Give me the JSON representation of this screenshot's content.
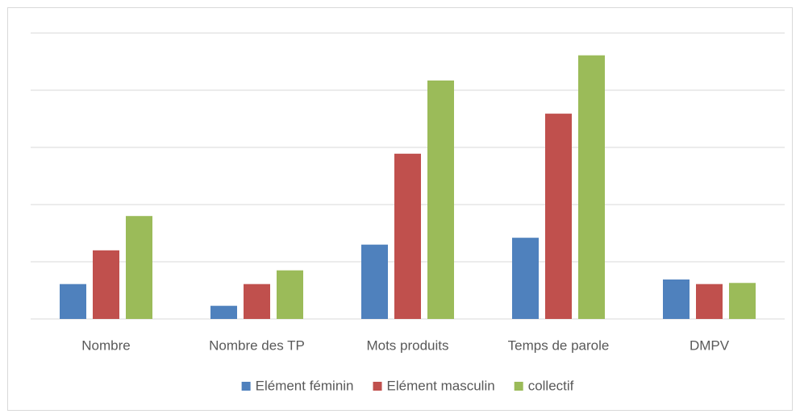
{
  "chart_data": {
    "type": "bar",
    "categories": [
      "Nombre",
      "Nombre des TP",
      "Mots produits",
      "Temps de parole",
      "DMPV"
    ],
    "series": [
      {
        "name": "Elément féminin",
        "color": "#4f81bd",
        "values": [
          0.61,
          0.23,
          1.3,
          1.42,
          0.69
        ]
      },
      {
        "name": "Elément masculin",
        "color": "#c0504d",
        "values": [
          1.2,
          0.61,
          2.89,
          3.59,
          0.61
        ]
      },
      {
        "name": "collectif",
        "color": "#9bbb59",
        "values": [
          1.8,
          0.85,
          4.17,
          4.61,
          0.63
        ]
      }
    ],
    "ylim": [
      0,
      5
    ],
    "yticks": [
      0,
      1,
      2,
      3,
      4,
      5
    ],
    "grid": true,
    "legend": "bottom"
  }
}
